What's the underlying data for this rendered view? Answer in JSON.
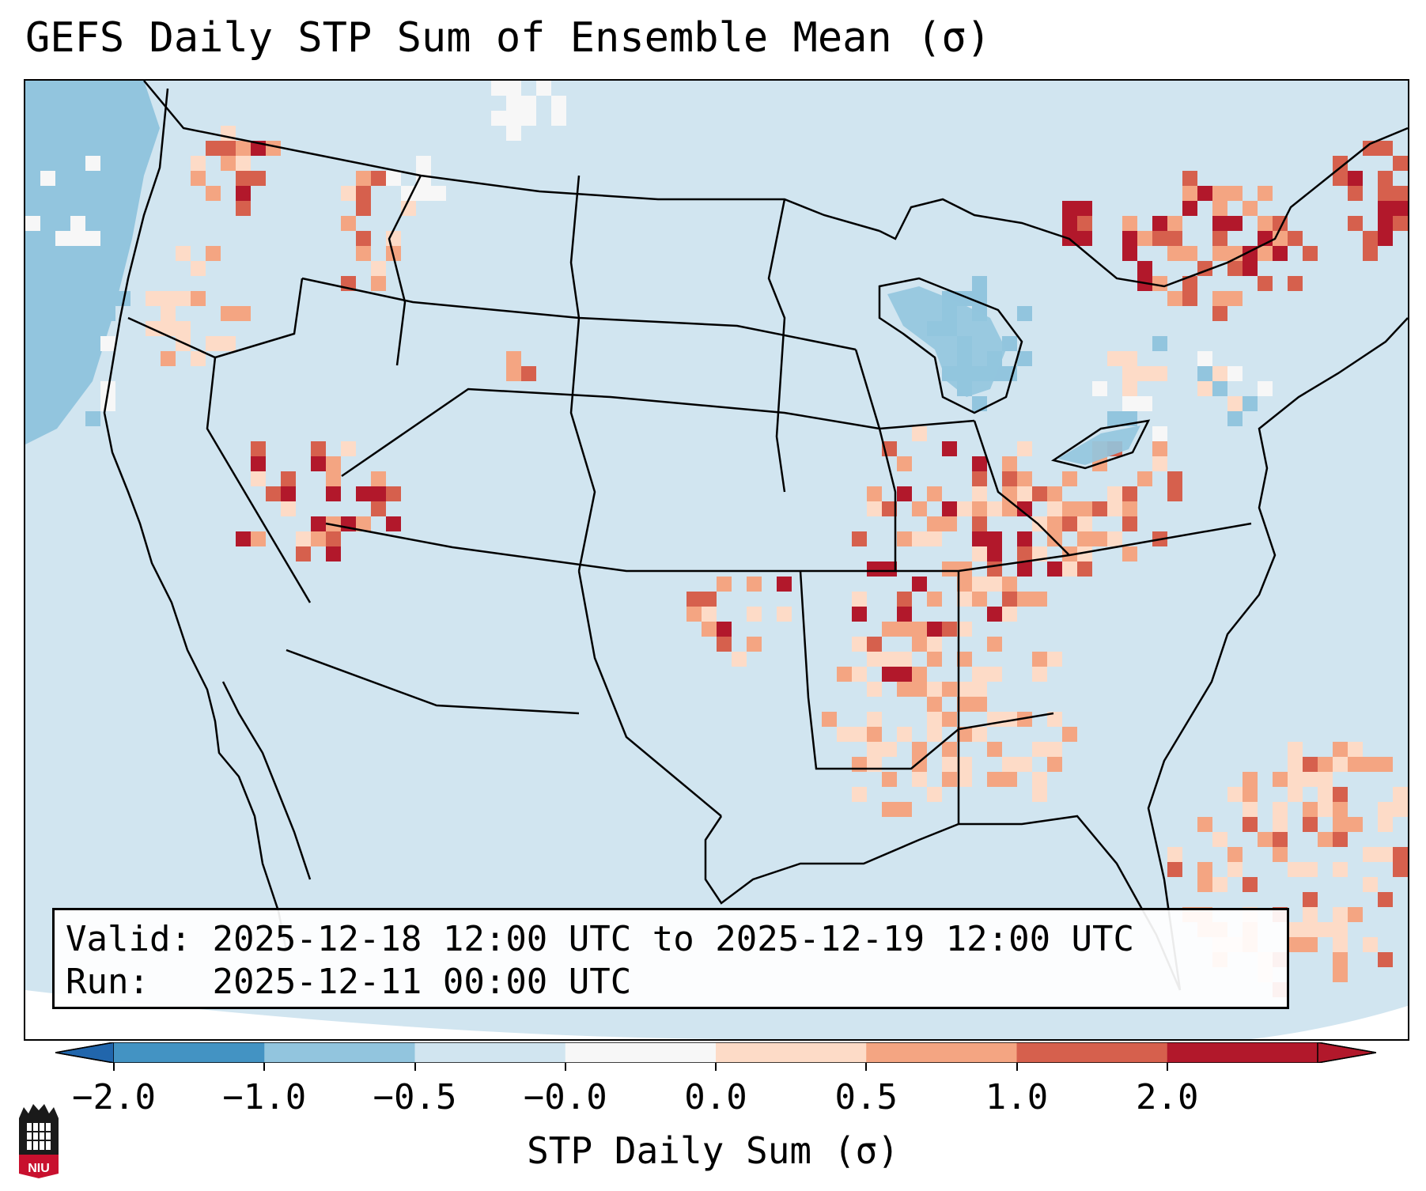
{
  "title": "GEFS Daily STP Sum of Ensemble Mean (σ)",
  "info": {
    "valid_label": "Valid:",
    "valid_value": "2025-12-18 12:00 UTC to 2025-12-19 12:00 UTC",
    "run_label": "Run:",
    "run_value": "2025-12-11 00:00 UTC"
  },
  "colorbar": {
    "label": "STP Daily Sum (σ)",
    "ticks": [
      "−2.0",
      "−1.0",
      "−0.5",
      "−0.0",
      "0.0",
      "0.5",
      "1.0",
      "2.0"
    ],
    "colors": [
      "#4393c3",
      "#92c5de",
      "#d1e5f0",
      "#f7f7f7",
      "#fddbc7",
      "#f4a582",
      "#d6604d",
      "#b2182b"
    ],
    "extend_low": "#2166ac",
    "extend_high": "#b2182b"
  },
  "map": {
    "background": "#d1e5f0",
    "ocean_low": "#92c5de",
    "legend_colors": {
      "light": "#fddbc7",
      "medium": "#f4a582",
      "strong": "#d6604d",
      "extreme": "#b2182b",
      "white": "#f7f7f7",
      "blue": "#92c5de"
    }
  },
  "logo": {
    "text": "NIU",
    "color": "#c8102e"
  }
}
